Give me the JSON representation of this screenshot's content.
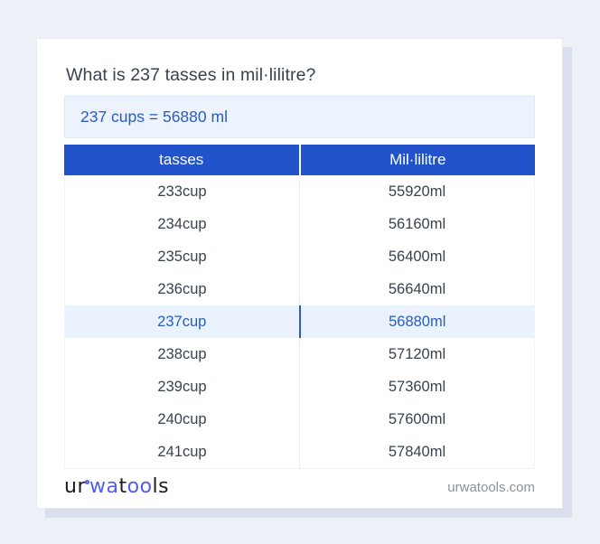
{
  "page": {
    "title": "What is 237 tasses in mil·lilitre?",
    "result": "237 cups = 56880 ml"
  },
  "table": {
    "headers": [
      "tasses",
      "Mil·lilitre"
    ],
    "rows": [
      {
        "from": "233cup",
        "to": "55920ml",
        "highlight": false
      },
      {
        "from": "234cup",
        "to": "56160ml",
        "highlight": false
      },
      {
        "from": "235cup",
        "to": "56400ml",
        "highlight": false
      },
      {
        "from": "236cup",
        "to": "56640ml",
        "highlight": false
      },
      {
        "from": "237cup",
        "to": "56880ml",
        "highlight": true
      },
      {
        "from": "238cup",
        "to": "57120ml",
        "highlight": false
      },
      {
        "from": "239cup",
        "to": "57360ml",
        "highlight": false
      },
      {
        "from": "240cup",
        "to": "57600ml",
        "highlight": false
      },
      {
        "from": "241cup",
        "to": "57840ml",
        "highlight": false
      }
    ]
  },
  "footer": {
    "logo_segments": [
      {
        "text": "ur",
        "color": "#1c1c1f"
      },
      {
        "ring": true,
        "color": "#4f5ef0"
      },
      {
        "text": "wa",
        "color": "#4f5ef0"
      },
      {
        "text": "t",
        "color": "#1c1c1f"
      },
      {
        "text": "oo",
        "color": "#4f5ef0"
      },
      {
        "text": "ls",
        "color": "#1c1c1f"
      }
    ],
    "site": "urwatools.com"
  },
  "colors": {
    "page_background": "#eef0f8",
    "card_background": "#ffffff",
    "header_blue": "#2253ca",
    "result_box_bg": "#ecf3fd",
    "result_text": "#2a5cbe",
    "highlight_row_bg": "#e9f2fd",
    "highlight_row_text": "#2a5db8",
    "body_text": "#39424f",
    "logo_blue": "#4f5ef0",
    "logo_dark": "#1c1c1f",
    "site_text": "#8d9199"
  }
}
